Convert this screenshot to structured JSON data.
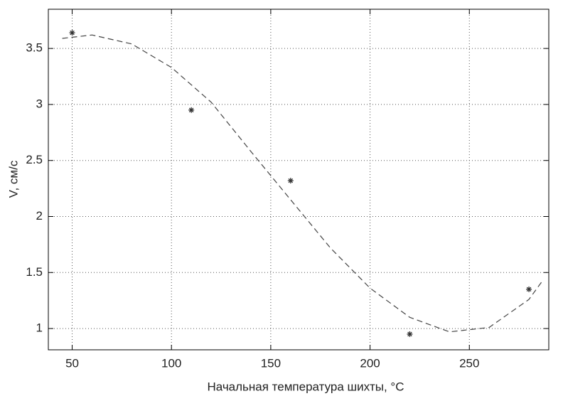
{
  "chart_data": {
    "type": "scatter",
    "xlabel": "Начальная температура шихты, °C",
    "ylabel": "V, см/с",
    "xlim": [
      38,
      290
    ],
    "ylim": [
      0.81,
      3.85
    ],
    "xticks": [
      50,
      100,
      150,
      200,
      250
    ],
    "yticks": [
      1,
      1.5,
      2,
      2.5,
      3,
      3.5
    ],
    "grid": true,
    "series": [
      {
        "style": "marker",
        "color": "#333333",
        "x": [
          50,
          110,
          160,
          220,
          280
        ],
        "values": [
          3.64,
          2.95,
          2.32,
          0.95,
          1.35
        ]
      },
      {
        "style": "dashed",
        "color": "#444444",
        "x": [
          45,
          60,
          80,
          100,
          120,
          140,
          160,
          180,
          200,
          220,
          240,
          260,
          280,
          287
        ],
        "values": [
          3.59,
          3.62,
          3.54,
          3.33,
          3.02,
          2.58,
          2.15,
          1.72,
          1.36,
          1.1,
          0.97,
          1.01,
          1.26,
          1.43
        ]
      }
    ]
  }
}
